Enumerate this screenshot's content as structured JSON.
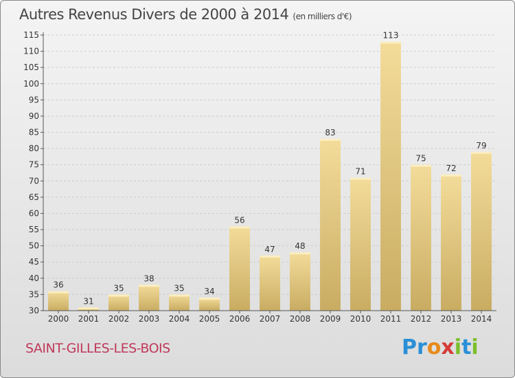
{
  "title": "Autres Revenus Divers de 2000 à 2014",
  "unit": "(en milliers d'€)",
  "place": "SAINT-GILLES-LES-BOIS",
  "logo": {
    "letters": [
      "P",
      "r",
      "o",
      "x",
      "i",
      "t",
      "i"
    ],
    "colors": [
      "#2a8fd6",
      "#2a8fd6",
      "#e88a1a",
      "#d63a3a",
      "#7bbf2a",
      "#2a8fd6",
      "#7bbf2a"
    ]
  },
  "colors": {
    "bar_light": "#f3dc9a",
    "bar_dark": "#c9ac62",
    "grid": "#cccccc",
    "axis": "#555555"
  },
  "chart_data": {
    "type": "bar",
    "title": "Autres Revenus Divers de 2000 à 2014",
    "categories": [
      "2000",
      "2001",
      "2002",
      "2003",
      "2004",
      "2005",
      "2006",
      "2007",
      "2008",
      "2009",
      "2010",
      "2011",
      "2012",
      "2013",
      "2014"
    ],
    "values": [
      36,
      31,
      35,
      38,
      35,
      34,
      56,
      47,
      48,
      83,
      71,
      113,
      75,
      72,
      79
    ],
    "ylim": [
      30,
      115
    ],
    "yticks": [
      30,
      35,
      40,
      45,
      50,
      55,
      60,
      65,
      70,
      75,
      80,
      85,
      90,
      95,
      100,
      105,
      110,
      115
    ],
    "grid": true,
    "xlabel": "",
    "ylabel": ""
  }
}
